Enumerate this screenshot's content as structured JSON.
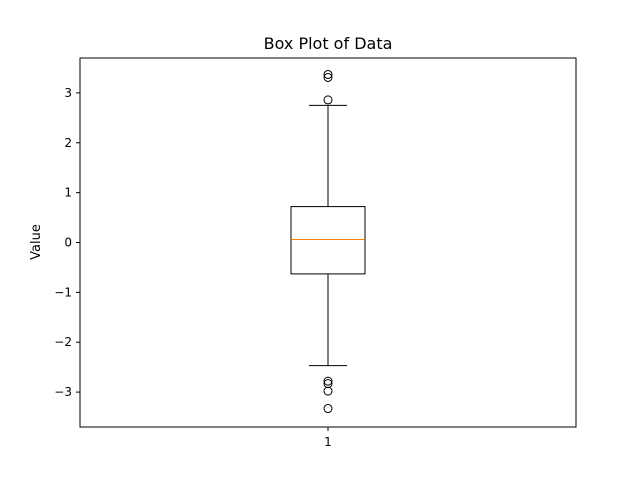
{
  "chart_data": {
    "type": "box",
    "title": "Box Plot of Data",
    "xlabel": "",
    "ylabel": "Value",
    "categories": [
      "1"
    ],
    "ylim": [
      -3.7,
      3.7
    ],
    "yticks": [
      -3,
      -2,
      -1,
      0,
      1,
      2,
      3
    ],
    "ytick_labels": [
      "−3",
      "−2",
      "−1",
      "0",
      "1",
      "2",
      "3"
    ],
    "grid": false,
    "boxes": [
      {
        "category": "1",
        "whisker_low": -2.47,
        "q1": -0.63,
        "median": 0.06,
        "q3": 0.72,
        "whisker_high": 2.75,
        "outliers": [
          3.37,
          3.31,
          2.86,
          -2.78,
          -2.83,
          -2.98,
          -3.33
        ]
      }
    ],
    "colors": {
      "box": "#000000",
      "median": "#ff7f0e",
      "outlier": "#000000"
    }
  }
}
